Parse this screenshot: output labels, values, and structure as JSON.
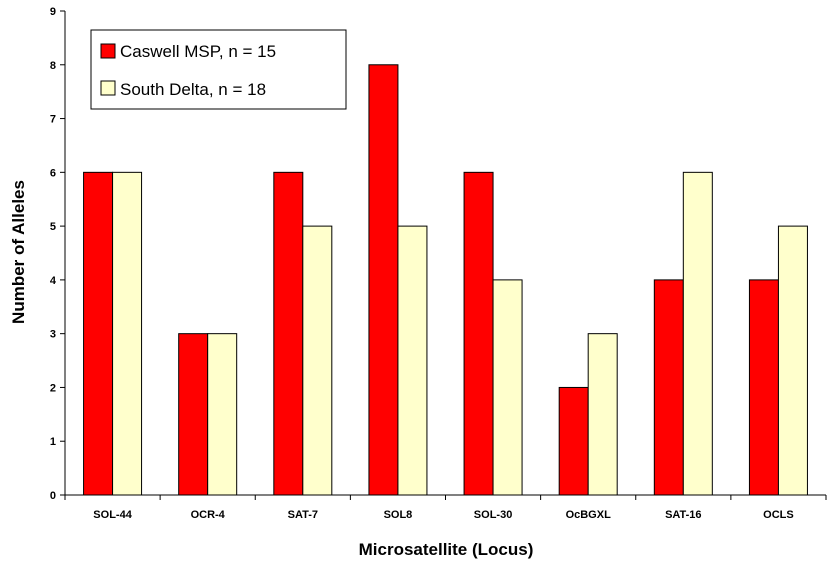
{
  "chart_data": {
    "type": "bar",
    "title": "",
    "xlabel": "Microsatellite (Locus)",
    "ylabel": "Number of Alleles",
    "ylim": [
      0,
      9
    ],
    "yticks": [
      "0",
      "1",
      "2",
      "3",
      "4",
      "5",
      "6",
      "7",
      "8",
      "9"
    ],
    "categories": [
      "SOL-44",
      "OCR-4",
      "SAT-7",
      "SOL8",
      "SOL-30",
      "OcBGXL",
      "SAT-16",
      "OCLS"
    ],
    "series": [
      {
        "name": "Caswell MSP, n = 15",
        "color": "#ff0000",
        "values": [
          6,
          3,
          6,
          8,
          6,
          2,
          4,
          4
        ]
      },
      {
        "name": "South Delta, n = 18",
        "color": "#ffffcc",
        "values": [
          6,
          3,
          5,
          5,
          4,
          3,
          6,
          5
        ]
      }
    ],
    "grid": false,
    "legend_position": "top-left"
  }
}
